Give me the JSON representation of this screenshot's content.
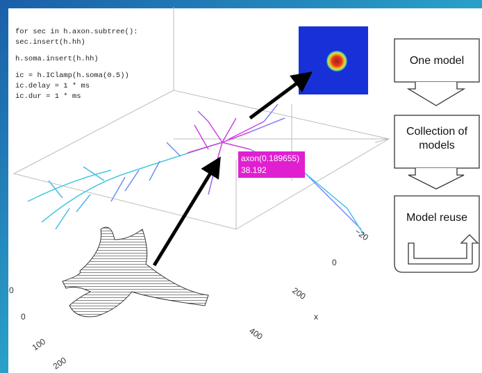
{
  "code": {
    "lines": [
      "for sec in h.axon.subtree():",
      "  sec.insert(h.hh)",
      "h.soma.insert(h.hh)",
      "ic = h.IClamp(h.soma(0.5))",
      "ic.delay = 1 * ms",
      "ic.dur = 1 * ms"
    ]
  },
  "tooltip": {
    "label": "axon(0.189655)",
    "value": "38.192"
  },
  "axis": {
    "x_label": "x",
    "x_ticks": [
      "−20",
      "0",
      "200",
      "400"
    ],
    "y_ticks": [
      "0",
      "0",
      "100",
      "200"
    ]
  },
  "flow": {
    "steps": [
      "One model",
      "Collection of models",
      "Model reuse"
    ]
  }
}
